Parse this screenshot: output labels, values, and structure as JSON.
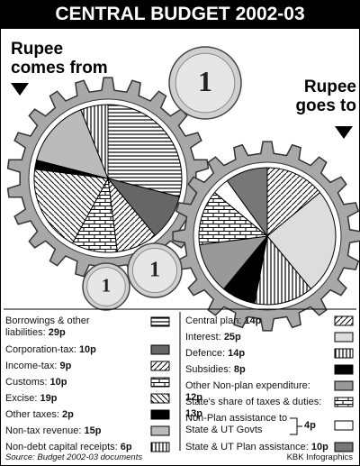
{
  "page_title": "CENTRAL BUDGET 2002-03",
  "coin_label": "1",
  "source": "Source: Budget 2002-03 documents",
  "credit": "KBK Infographics",
  "chart_data": [
    {
      "type": "pie",
      "title": "Rupee comes from",
      "categories": [
        "Borrowings & other liabilities:",
        "Corporation-tax:",
        "Income-tax:",
        "Customs:",
        "Excise:",
        "Other taxes:",
        "Non-tax revenue:",
        "Non-debt capital receipts:"
      ],
      "values": [
        29,
        10,
        9,
        10,
        19,
        2,
        15,
        6
      ],
      "value_labels": [
        "29p",
        "10p",
        "9p",
        "10p",
        "19p",
        "2p",
        "15p",
        "6p"
      ],
      "colors": [
        "url(#hl)",
        "#666666",
        "url(#dg)",
        "url(#brick)",
        "url(#bd)",
        "#000000",
        "#bbbbbb",
        "url(#vl)"
      ]
    },
    {
      "type": "pie",
      "title": "Rupee goes to",
      "categories": [
        "Central plan:",
        "Interest:",
        "Defence:",
        "Subsidies:",
        "Other Non-plan expenditure:",
        "State's share of taxes & duties:",
        "Non-Plan assistance to State & UT Govts",
        "State & UT Plan assistance:"
      ],
      "values": [
        14,
        25,
        14,
        8,
        12,
        13,
        4,
        10
      ],
      "value_labels": [
        "14p",
        "25p",
        "14p",
        "8p",
        "12p",
        "13p",
        "4p",
        "10p"
      ],
      "colors": [
        "url(#dg)",
        "#dddddd",
        "url(#vl)",
        "#000000",
        "#999999",
        "url(#brick)",
        "#ffffff",
        "#777777"
      ]
    }
  ]
}
